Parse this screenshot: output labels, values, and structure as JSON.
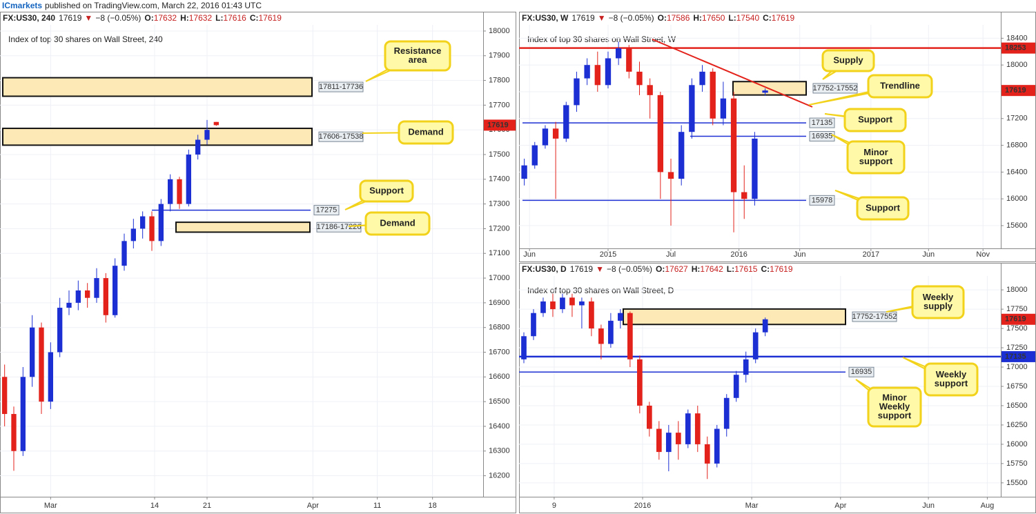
{
  "header": {
    "brand": "ICmarkets",
    "text": "published on TradingView.com, March 22, 2016 01:43 UTC"
  },
  "charts": [
    {
      "type": "candlestick",
      "symbol": "FX:US30, 240",
      "price": 17619,
      "direction": "▼",
      "change": "−8 (−0.05%)",
      "ohlc": [
        {
          "label": "O:",
          "value": 17632
        },
        {
          "label": "H:",
          "value": 17632
        },
        {
          "label": "L:",
          "value": 17616
        },
        {
          "label": "C:",
          "value": 17619
        }
      ],
      "title": "Index of top 30 shares on Wall Street, 240",
      "open": [
        16600,
        16450,
        16300,
        16600,
        16800,
        16500,
        16700,
        16880,
        16900,
        16950,
        16920,
        17000,
        16850,
        17050,
        17150,
        17200,
        17250,
        17150,
        17300,
        17400,
        17300,
        17500,
        17560,
        17632
      ],
      "high": [
        16650,
        16480,
        16640,
        16850,
        16820,
        16740,
        16920,
        16950,
        16990,
        16980,
        17040,
        17020,
        17080,
        17180,
        17240,
        17270,
        17270,
        17320,
        17420,
        17410,
        17520,
        17580,
        17640,
        17632
      ],
      "low": [
        16400,
        16220,
        16280,
        16560,
        16450,
        16470,
        16680,
        16850,
        16870,
        16880,
        16900,
        16820,
        16840,
        17030,
        17120,
        17160,
        17110,
        17130,
        17270,
        17280,
        17290,
        17480,
        17540,
        17616
      ],
      "close": [
        16450,
        16300,
        16600,
        16800,
        16500,
        16700,
        16880,
        16900,
        16950,
        16920,
        17000,
        16850,
        17050,
        17150,
        17200,
        17250,
        17150,
        17300,
        17400,
        17300,
        17500,
        17560,
        17600,
        17619
      ],
      "up_color": "#1b2fd3",
      "down_color": "#e3221b",
      "grid": true,
      "xlim": [
        -0.5,
        52
      ],
      "xticks": [
        {
          "value": 5,
          "label": "Mar"
        },
        {
          "value": 16.3,
          "label": "14"
        },
        {
          "value": 22,
          "label": "21"
        },
        {
          "value": 33.5,
          "label": "Apr"
        },
        {
          "value": 40.5,
          "label": "11"
        },
        {
          "value": 46.5,
          "label": "18"
        }
      ],
      "ylim": [
        16115,
        18025
      ],
      "yticks": [
        16200,
        16300,
        16400,
        16500,
        16600,
        16700,
        16800,
        16900,
        17000,
        17100,
        17200,
        17300,
        17400,
        17500,
        17600,
        17700,
        17800,
        17900,
        18000
      ],
      "zones": [
        {
          "label": "17811-17736",
          "top": 17811,
          "bottom": 17736
        },
        {
          "label": "17606-17538",
          "top": 17606,
          "bottom": 17538
        },
        {
          "label": "17186-17226",
          "top": 17226,
          "bottom": 17186
        }
      ],
      "levels": [
        {
          "value": 17275,
          "color": "#1b2fd3"
        }
      ],
      "callouts": [
        {
          "lines": [
            "Resistance",
            "area"
          ]
        },
        {
          "lines": [
            "Demand"
          ]
        },
        {
          "lines": [
            "Support"
          ]
        },
        {
          "lines": [
            "Demand"
          ]
        }
      ]
    },
    {
      "type": "candlestick",
      "symbol": "FX:US30, W",
      "price": 17619,
      "direction": "▼",
      "change": "−8 (−0.05%)",
      "ohlc": [
        {
          "label": "O:",
          "value": 17586
        },
        {
          "label": "H:",
          "value": 17650
        },
        {
          "label": "L:",
          "value": 17540
        },
        {
          "label": "C:",
          "value": 17619
        }
      ],
      "title": "Index of top 30 shares on Wall Street, W",
      "open": [
        16300,
        16500,
        16800,
        17050,
        16900,
        17400,
        17800,
        18000,
        17700,
        18100,
        18250,
        17900,
        17700,
        17550,
        16400,
        16300,
        17000,
        17700,
        17900,
        17200,
        17500,
        16100,
        16000,
        17586
      ],
      "high": [
        16600,
        16850,
        17100,
        17150,
        17450,
        17900,
        18100,
        18200,
        18200,
        18350,
        18300,
        18050,
        17800,
        17600,
        16600,
        17100,
        17800,
        18000,
        17950,
        17750,
        17600,
        16500,
        17000,
        17650
      ],
      "low": [
        16200,
        16450,
        16750,
        16000,
        16850,
        17300,
        17700,
        17600,
        17650,
        18000,
        17800,
        17550,
        17200,
        16000,
        15600,
        16200,
        16900,
        17600,
        17100,
        17100,
        15500,
        15700,
        15900,
        17540
      ],
      "close": [
        16500,
        16800,
        17050,
        16900,
        17400,
        17800,
        18000,
        17700,
        18100,
        18250,
        17900,
        17700,
        17550,
        16400,
        16300,
        17000,
        17700,
        17900,
        17200,
        17500,
        16100,
        16000,
        16900,
        17619
      ],
      "up_color": "#1b2fd3",
      "down_color": "#e3221b",
      "grid": true,
      "xlim": [
        -0.5,
        45.5
      ],
      "xticks": [
        {
          "value": 0.5,
          "label": "Jun"
        },
        {
          "value": 8,
          "label": "2015"
        },
        {
          "value": 14,
          "label": "Jul"
        },
        {
          "value": 20.5,
          "label": "2016"
        },
        {
          "value": 26.3,
          "label": "Jun"
        },
        {
          "value": 33.1,
          "label": "2017"
        },
        {
          "value": 38.6,
          "label": "Jun"
        },
        {
          "value": 43.8,
          "label": "Nov"
        }
      ],
      "ylim": [
        15260,
        18600
      ],
      "yticks": [
        15600,
        16000,
        16400,
        16800,
        17200,
        17600,
        18000,
        18400
      ],
      "zones": [
        {
          "label": "17752-17552",
          "top": 17752,
          "bottom": 17552
        }
      ],
      "levels": [
        {
          "value": 18253,
          "color": "#e3221b",
          "axis_tag": true
        },
        {
          "value": 17135,
          "color": "#1b2fd3"
        },
        {
          "value": 16935,
          "color": "#1b2fd3"
        },
        {
          "value": 15978,
          "color": "#1b2fd3"
        }
      ],
      "callouts": [
        {
          "lines": [
            "Supply"
          ]
        },
        {
          "lines": [
            "Trendline"
          ]
        },
        {
          "lines": [
            "Support"
          ]
        },
        {
          "lines": [
            "Minor",
            "support"
          ]
        },
        {
          "lines": [
            "Support"
          ]
        }
      ]
    },
    {
      "type": "candlestick",
      "symbol": "FX:US30, D",
      "price": 17619,
      "direction": "▼",
      "change": "−8 (−0.05%)",
      "ohlc": [
        {
          "label": "O:",
          "value": 17627
        },
        {
          "label": "H:",
          "value": 17642
        },
        {
          "label": "L:",
          "value": 17615
        },
        {
          "label": "C:",
          "value": 17619
        }
      ],
      "title": "Index of top 30 shares on Wall Street, D",
      "open": [
        17100,
        17400,
        17700,
        17850,
        17750,
        17900,
        17800,
        17850,
        17500,
        17300,
        17600,
        17700,
        17100,
        16500,
        16200,
        15900,
        16150,
        16000,
        16400,
        16000,
        15750,
        16200,
        16600,
        16900,
        17100,
        17450
      ],
      "high": [
        17450,
        17750,
        17900,
        17950,
        17950,
        17950,
        17900,
        17900,
        17550,
        17700,
        17750,
        17720,
        17150,
        16550,
        16300,
        16250,
        16300,
        16450,
        16500,
        16100,
        16250,
        16650,
        16950,
        17200,
        17500,
        17642
      ],
      "low": [
        17050,
        17350,
        17650,
        17650,
        17700,
        17650,
        17500,
        17400,
        17100,
        17250,
        17500,
        17000,
        16400,
        16100,
        15800,
        15650,
        15800,
        15950,
        15900,
        15550,
        15700,
        16100,
        16550,
        16800,
        17050,
        17400
      ],
      "close": [
        17400,
        17700,
        17850,
        17750,
        17900,
        17800,
        17850,
        17500,
        17300,
        17600,
        17700,
        17100,
        16500,
        16200,
        15900,
        16150,
        16000,
        16400,
        16000,
        15750,
        16200,
        16600,
        16900,
        17100,
        17450,
        17619
      ],
      "up_color": "#1b2fd3",
      "down_color": "#e3221b",
      "grid": true,
      "xlim": [
        -0.5,
        49.4
      ],
      "xticks": [
        {
          "value": 3.14,
          "label": "9"
        },
        {
          "value": 12.3,
          "label": "2016"
        },
        {
          "value": 23.6,
          "label": "Mar"
        },
        {
          "value": 32.8,
          "label": "Apr"
        },
        {
          "value": 41.9,
          "label": "Jun"
        },
        {
          "value": 48,
          "label": "Aug"
        }
      ],
      "ylim": [
        15320,
        18180
      ],
      "yticks": [
        15500,
        15750,
        16000,
        16250,
        16500,
        16750,
        17000,
        17250,
        17500,
        17750,
        18000
      ],
      "zones": [
        {
          "label": "17752-17552",
          "top": 17752,
          "bottom": 17552
        }
      ],
      "levels": [
        {
          "value": 17135,
          "color": "#1b2fd3",
          "axis_tag": true
        },
        {
          "value": 16935,
          "color": "#1b2fd3"
        }
      ],
      "callouts": [
        {
          "lines": [
            "Weekly",
            "supply"
          ]
        },
        {
          "lines": [
            "Weekly",
            "support"
          ]
        },
        {
          "lines": [
            "Minor",
            "Weekly",
            "support"
          ]
        }
      ]
    }
  ]
}
